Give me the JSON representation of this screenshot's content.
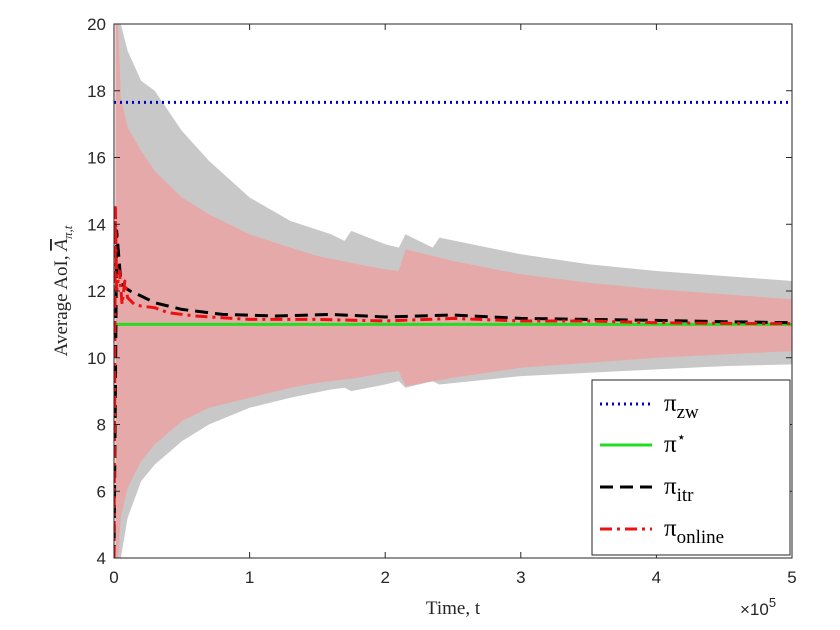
{
  "chart_data": {
    "type": "line",
    "xlabel": "Time, t",
    "ylabel": "Average AoI, A̅π,t",
    "ylabel_parts": {
      "main": "Average AoI, ",
      "symbol": "A",
      "sub": "π,t"
    },
    "xlim": [
      0,
      5
    ],
    "ylim": [
      4,
      20
    ],
    "x_ticks": [
      0,
      1,
      2,
      3,
      4,
      5
    ],
    "y_ticks": [
      4,
      6,
      8,
      10,
      12,
      14,
      16,
      18,
      20
    ],
    "x_exponent": {
      "base": "×10",
      "power": "5"
    },
    "grid": false,
    "legend_position": "bottom-right",
    "series": [
      {
        "name": "π_zw",
        "legend": {
          "symbol": "π",
          "sub": "zw",
          "sup": ""
        },
        "color": "#0000cc",
        "style": "dotted",
        "x": [
          0,
          5
        ],
        "y": [
          17.65,
          17.65
        ]
      },
      {
        "name": "π*",
        "legend": {
          "symbol": "π",
          "sub": "",
          "sup": "⋆"
        },
        "color": "#22dd22",
        "style": "solid",
        "x": [
          0,
          5
        ],
        "y": [
          11.0,
          11.0
        ]
      },
      {
        "name": "π_itr",
        "legend": {
          "symbol": "π",
          "sub": "itr",
          "sup": ""
        },
        "color": "#000000",
        "style": "dashed",
        "x": [
          0,
          0.02,
          0.05,
          0.08,
          0.12,
          0.2,
          0.3,
          0.5,
          0.8,
          1.2,
          1.6,
          2.0,
          2.5,
          3.0,
          3.5,
          4.0,
          4.5,
          5.0
        ],
        "y": [
          4.0,
          13.8,
          12.3,
          12.1,
          12.0,
          11.85,
          11.65,
          11.45,
          11.3,
          11.25,
          11.3,
          11.22,
          11.28,
          11.18,
          11.15,
          11.12,
          11.08,
          11.05
        ]
      },
      {
        "name": "π_online",
        "legend": {
          "symbol": "π",
          "sub": "online",
          "sup": ""
        },
        "color": "#ee1111",
        "style": "dashdot",
        "x": [
          0,
          0.01,
          0.02,
          0.04,
          0.06,
          0.08,
          0.1,
          0.15,
          0.2,
          0.3,
          0.4,
          0.6,
          0.8,
          1.0,
          1.5,
          2.0,
          2.5,
          3.0,
          3.5,
          4.0,
          4.5,
          5.0
        ],
        "y": [
          4.0,
          14.5,
          12.0,
          12.6,
          11.6,
          12.3,
          11.8,
          11.6,
          11.55,
          11.5,
          11.35,
          11.25,
          11.2,
          11.15,
          11.15,
          11.1,
          11.18,
          11.1,
          11.1,
          11.05,
          11.03,
          11.02
        ]
      }
    ],
    "bands": [
      {
        "color": "#c8c8c8",
        "x": [
          0.02,
          0.05,
          0.1,
          0.2,
          0.3,
          0.5,
          0.7,
          1.0,
          1.3,
          1.6,
          1.7,
          1.75,
          2.0,
          2.1,
          2.15,
          2.35,
          2.4,
          3.0,
          3.5,
          4.0,
          4.5,
          5.0
        ],
        "upper": [
          20.0,
          20.0,
          19.2,
          18.3,
          18.0,
          16.8,
          15.9,
          14.8,
          14.1,
          13.7,
          13.5,
          13.8,
          13.4,
          13.3,
          13.7,
          13.3,
          13.6,
          13.1,
          12.8,
          12.6,
          12.45,
          12.3
        ],
        "lower": [
          4.0,
          4.0,
          5.2,
          6.3,
          6.8,
          7.5,
          8.0,
          8.5,
          8.8,
          9.05,
          9.1,
          9.0,
          9.2,
          9.3,
          9.1,
          9.3,
          9.2,
          9.45,
          9.55,
          9.65,
          9.75,
          9.8
        ]
      },
      {
        "color": "#e5a9a9",
        "x": [
          0.01,
          0.03,
          0.05,
          0.1,
          0.2,
          0.3,
          0.5,
          0.7,
          1.0,
          1.3,
          1.5,
          1.8,
          2.0,
          2.1,
          2.15,
          2.5,
          3.0,
          3.5,
          4.0,
          4.5,
          5.0
        ],
        "upper": [
          20.0,
          20.0,
          17.8,
          16.9,
          16.2,
          15.6,
          14.8,
          14.3,
          13.7,
          13.3,
          13.05,
          12.8,
          12.65,
          12.6,
          13.25,
          12.9,
          12.5,
          12.25,
          12.05,
          11.9,
          11.75
        ],
        "lower": [
          4.0,
          4.0,
          5.2,
          6.1,
          6.9,
          7.4,
          8.1,
          8.5,
          8.8,
          9.1,
          9.25,
          9.4,
          9.55,
          9.6,
          9.15,
          9.4,
          9.7,
          9.85,
          10.0,
          10.1,
          10.2
        ]
      }
    ]
  }
}
